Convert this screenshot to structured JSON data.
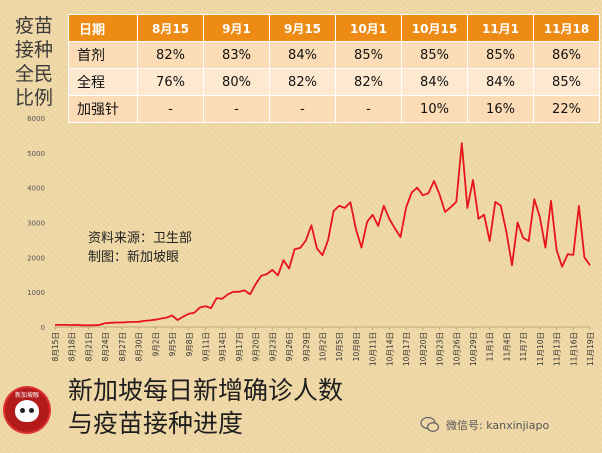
{
  "side_title": "疫苗\n接种\n全民\n比例",
  "table": {
    "header_label": "日期",
    "dates": [
      "8月15",
      "9月1",
      "9月15",
      "10月1",
      "10月15",
      "11月1",
      "11月18"
    ],
    "rows": [
      {
        "label": "首剂",
        "values": [
          "82%",
          "83%",
          "84%",
          "85%",
          "85%",
          "85%",
          "86%"
        ]
      },
      {
        "label": "全程",
        "values": [
          "76%",
          "80%",
          "82%",
          "82%",
          "84%",
          "84%",
          "85%"
        ]
      },
      {
        "label": "加强针",
        "values": [
          "-",
          "-",
          "-",
          "-",
          "10%",
          "16%",
          "22%"
        ]
      }
    ]
  },
  "source_line1": "资料来源：卫生部",
  "source_line2": "制图：新加坡眼",
  "headline_line1": "新加坡每日新增确诊人数",
  "headline_line2": "与疫苗接种进度",
  "logo_text": "新加坡眼",
  "wechat_label": "微信号: kanxinjiapo",
  "chart_data": {
    "type": "line",
    "ylim": [
      0,
      6000
    ],
    "yticks": [
      0,
      1000,
      2000,
      3000,
      4000,
      5000,
      6000
    ],
    "xtick_labels": [
      "8月15日",
      "8月18日",
      "8月21日",
      "8月24日",
      "8月27日",
      "8月30日",
      "9月2日",
      "9月5日",
      "9月8日",
      "9月11日",
      "9月14日",
      "9月17日",
      "9月20日",
      "9月23日",
      "9月26日",
      "9月29日",
      "10月2日",
      "10月5日",
      "10月8日",
      "10月11日",
      "10月14日",
      "10月17日",
      "10月20日",
      "10月23日",
      "10月26日",
      "10月29日",
      "11月1日",
      "11月4日",
      "11月7日",
      "11月10日",
      "11月13日",
      "11月16日",
      "11月19日"
    ],
    "color": "#e8141a",
    "series": [
      {
        "values": [
          60,
          60,
          60,
          55,
          60,
          50,
          50,
          50,
          60,
          110,
          120,
          130,
          130,
          140,
          145,
          150,
          175,
          190,
          210,
          240,
          270,
          330,
          200,
          300,
          380,
          410,
          560,
          600,
          540,
          830,
          810,
          940,
          1010,
          1010,
          1050,
          940,
          1230,
          1470,
          1520,
          1640,
          1480,
          1920,
          1680,
          2230,
          2270,
          2480,
          2920,
          2260,
          2060,
          2500,
          3330,
          3480,
          3420,
          3580,
          2810,
          2280,
          3020,
          3220,
          2900,
          3480,
          3100,
          2830,
          2580,
          3430,
          3860,
          4000,
          3780,
          3840,
          4190,
          3810,
          3300,
          3440,
          3590,
          5280,
          3420,
          4220,
          3110,
          3220,
          2470,
          3590,
          3480,
          2730,
          1770,
          3000,
          2560,
          2470,
          3670,
          3160,
          2280,
          3620,
          2210,
          1730,
          2090,
          2070,
          3480,
          2000,
          1770
        ]
      }
    ]
  }
}
